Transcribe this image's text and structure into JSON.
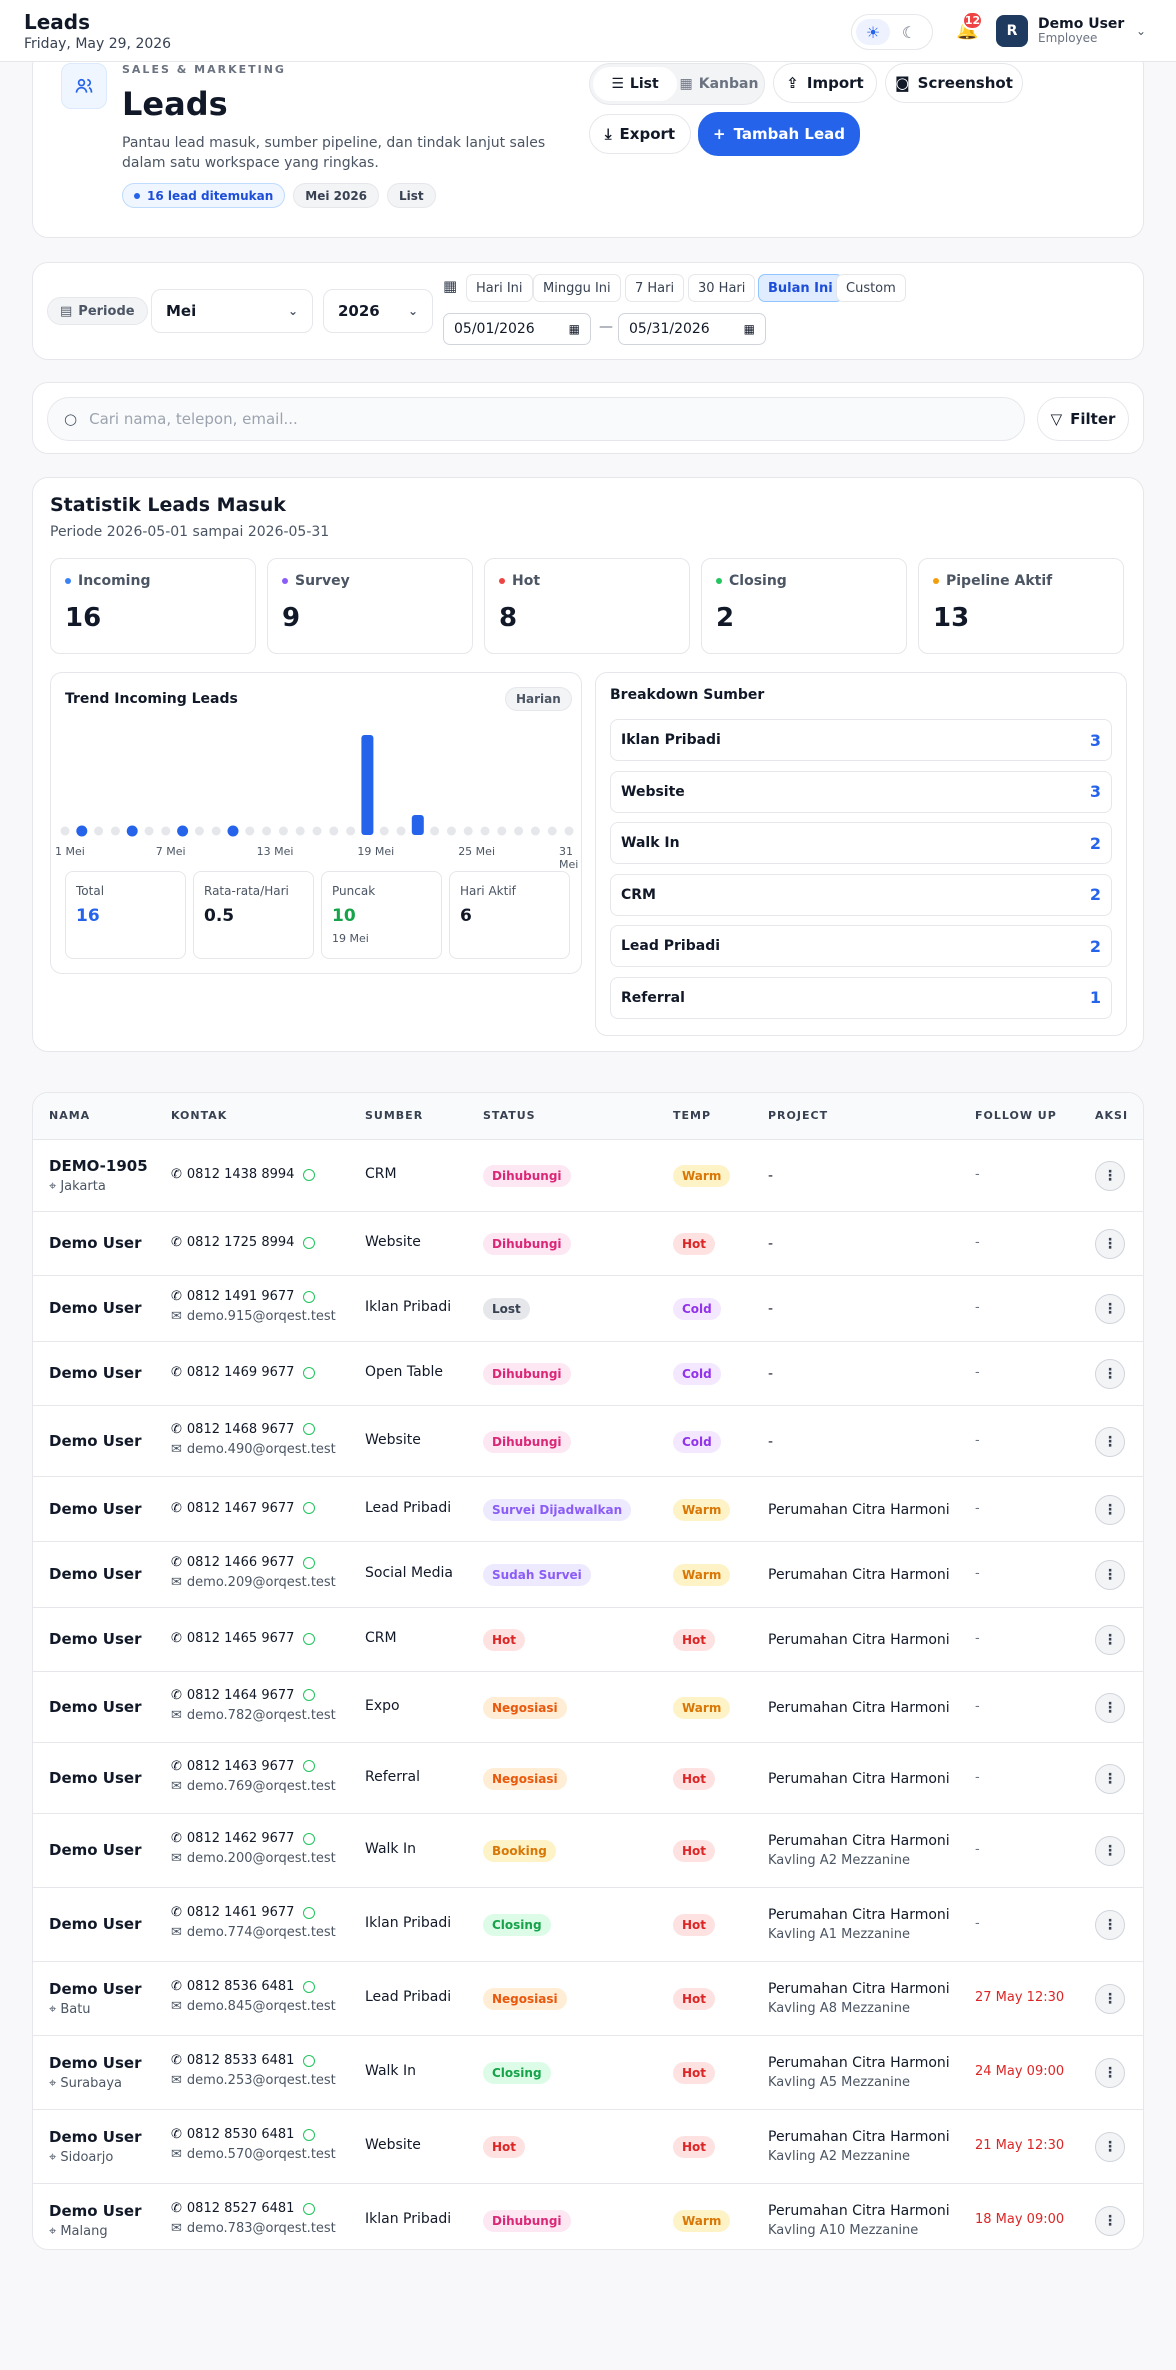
{
  "topbar": {
    "title": "Leads",
    "date": "Friday, May 29, 2026",
    "notif_count": "12",
    "user_initial": "R",
    "user_name": "Demo User",
    "user_role": "Employee"
  },
  "hero": {
    "kicker": "SALES & MARKETING",
    "title": "Leads",
    "desc": "Pantau lead masuk, sumber pipeline, dan tindak lanjut sales dalam satu workspace yang ringkas.",
    "chips": [
      "16 lead ditemukan",
      "Mei 2026",
      "List"
    ],
    "view_list": "List",
    "view_kanban": "Kanban",
    "import": "Import",
    "screenshot": "Screenshot",
    "export": "Export",
    "add": "Tambah Lead"
  },
  "period": {
    "label": "Periode",
    "month": "Mei",
    "year": "2026",
    "quick": [
      "Hari Ini",
      "Minggu Ini",
      "7 Hari",
      "30 Hari",
      "Bulan Ini",
      "Custom"
    ],
    "active_quick": "Bulan Ini",
    "date_from": "05/01/2026",
    "date_to": "05/31/2026",
    "sep": "—"
  },
  "search": {
    "placeholder": "Cari nama, telepon, email...",
    "filter": "Filter"
  },
  "stats": {
    "title": "Statistik Leads Masuk",
    "subtitle": "Periode 2026-05-01 sampai 2026-05-31",
    "cards": [
      {
        "label": "Incoming",
        "value": "16",
        "color": "#3b82f6"
      },
      {
        "label": "Survey",
        "value": "9",
        "color": "#8b5cf6"
      },
      {
        "label": "Hot",
        "value": "8",
        "color": "#ef4444"
      },
      {
        "label": "Closing",
        "value": "2",
        "color": "#22c55e"
      },
      {
        "label": "Pipeline Aktif",
        "value": "13",
        "color": "#f59e0b"
      }
    ],
    "trend_title": "Trend Incoming Leads",
    "trend_mode": "Harian",
    "metrics": [
      {
        "label": "Total",
        "value": "16",
        "color": "#2563eb",
        "sub": ""
      },
      {
        "label": "Rata-rata/Hari",
        "value": "0.5",
        "color": "#111827",
        "sub": ""
      },
      {
        "label": "Puncak",
        "value": "10",
        "color": "#16a34a",
        "sub": "19 Mei"
      },
      {
        "label": "Hari Aktif",
        "value": "6",
        "color": "#111827",
        "sub": ""
      }
    ],
    "breakdown_title": "Breakdown Sumber",
    "breakdown": [
      {
        "label": "Iklan Pribadi",
        "value": "3"
      },
      {
        "label": "Website",
        "value": "3"
      },
      {
        "label": "Walk In",
        "value": "2"
      },
      {
        "label": "CRM",
        "value": "2"
      },
      {
        "label": "Lead Pribadi",
        "value": "2"
      },
      {
        "label": "Referral",
        "value": "1"
      }
    ]
  },
  "chart_data": {
    "type": "bar",
    "title": "Trend Incoming Leads",
    "categories": [
      "1 Mei",
      "2 Mei",
      "3 Mei",
      "4 Mei",
      "5 Mei",
      "6 Mei",
      "7 Mei",
      "8 Mei",
      "9 Mei",
      "10 Mei",
      "11 Mei",
      "12 Mei",
      "13 Mei",
      "14 Mei",
      "15 Mei",
      "16 Mei",
      "17 Mei",
      "18 Mei",
      "19 Mei",
      "20 Mei",
      "21 Mei",
      "22 Mei",
      "23 Mei",
      "24 Mei",
      "25 Mei",
      "26 Mei",
      "27 Mei",
      "28 Mei",
      "29 Mei",
      "30 Mei",
      "31 Mei"
    ],
    "values": [
      0,
      1,
      0,
      0,
      1,
      0,
      0,
      1,
      0,
      0,
      1,
      0,
      0,
      0,
      0,
      0,
      0,
      0,
      10,
      0,
      0,
      2,
      0,
      0,
      0,
      0,
      0,
      0,
      0,
      0,
      0
    ],
    "tick_labels": [
      "1 Mei",
      "7 Mei",
      "13 Mei",
      "19 Mei",
      "25 Mei",
      "31 Mei"
    ],
    "ylim": [
      0,
      10
    ]
  },
  "table": {
    "headers": [
      "NAMA",
      "KONTAK",
      "SUMBER",
      "STATUS",
      "TEMP",
      "PROJECT",
      "FOLLOW UP",
      "AKSI"
    ],
    "rows": [
      {
        "name": "DEMO-1905",
        "city": "Jakarta",
        "phone": "0812 1438 8994",
        "email": "",
        "source": "CRM",
        "status": "Dihubungi",
        "temp": "Warm",
        "project": "-",
        "project_sub": "",
        "followup": "-"
      },
      {
        "name": "Demo User",
        "city": "",
        "phone": "0812 1725 8994",
        "email": "",
        "source": "Website",
        "status": "Dihubungi",
        "temp": "Hot",
        "project": "-",
        "project_sub": "",
        "followup": "-"
      },
      {
        "name": "Demo User",
        "city": "",
        "phone": "0812 1491 9677",
        "email": "demo.915@orqest.test",
        "source": "Iklan Pribadi",
        "status": "Lost",
        "temp": "Cold",
        "project": "-",
        "project_sub": "",
        "followup": "-"
      },
      {
        "name": "Demo User",
        "city": "",
        "phone": "0812 1469 9677",
        "email": "",
        "source": "Open Table",
        "status": "Dihubungi",
        "temp": "Cold",
        "project": "-",
        "project_sub": "",
        "followup": "-"
      },
      {
        "name": "Demo User",
        "city": "",
        "phone": "0812 1468 9677",
        "email": "demo.490@orqest.test",
        "source": "Website",
        "status": "Dihubungi",
        "temp": "Cold",
        "project": "-",
        "project_sub": "",
        "followup": "-"
      },
      {
        "name": "Demo User",
        "city": "",
        "phone": "0812 1467 9677",
        "email": "",
        "source": "Lead Pribadi",
        "status": "Survei Dijadwalkan",
        "temp": "Warm",
        "project": "Perumahan Citra Harmoni",
        "project_sub": "",
        "followup": "-"
      },
      {
        "name": "Demo User",
        "city": "",
        "phone": "0812 1466 9677",
        "email": "demo.209@orqest.test",
        "source": "Social Media",
        "status": "Sudah Survei",
        "temp": "Warm",
        "project": "Perumahan Citra Harmoni",
        "project_sub": "",
        "followup": "-"
      },
      {
        "name": "Demo User",
        "city": "",
        "phone": "0812 1465 9677",
        "email": "",
        "source": "CRM",
        "status": "Hot",
        "temp": "Hot",
        "project": "Perumahan Citra Harmoni",
        "project_sub": "",
        "followup": "-"
      },
      {
        "name": "Demo User",
        "city": "",
        "phone": "0812 1464 9677",
        "email": "demo.782@orqest.test",
        "source": "Expo",
        "status": "Negosiasi",
        "temp": "Warm",
        "project": "Perumahan Citra Harmoni",
        "project_sub": "",
        "followup": "-"
      },
      {
        "name": "Demo User",
        "city": "",
        "phone": "0812 1463 9677",
        "email": "demo.769@orqest.test",
        "source": "Referral",
        "status": "Negosiasi",
        "temp": "Hot",
        "project": "Perumahan Citra Harmoni",
        "project_sub": "",
        "followup": "-"
      },
      {
        "name": "Demo User",
        "city": "",
        "phone": "0812 1462 9677",
        "email": "demo.200@orqest.test",
        "source": "Walk In",
        "status": "Booking",
        "temp": "Hot",
        "project": "Perumahan Citra Harmoni",
        "project_sub": "Kavling A2 Mezzanine",
        "followup": "-"
      },
      {
        "name": "Demo User",
        "city": "",
        "phone": "0812 1461 9677",
        "email": "demo.774@orqest.test",
        "source": "Iklan Pribadi",
        "status": "Closing",
        "temp": "Hot",
        "project": "Perumahan Citra Harmoni",
        "project_sub": "Kavling A1 Mezzanine",
        "followup": "-"
      },
      {
        "name": "Demo User",
        "city": "Batu",
        "phone": "0812 8536 6481",
        "email": "demo.845@orqest.test",
        "source": "Lead Pribadi",
        "status": "Negosiasi",
        "temp": "Hot",
        "project": "Perumahan Citra Harmoni",
        "project_sub": "Kavling A8 Mezzanine",
        "followup": "27 May 12:30"
      },
      {
        "name": "Demo User",
        "city": "Surabaya",
        "phone": "0812 8533 6481",
        "email": "demo.253@orqest.test",
        "source": "Walk In",
        "status": "Closing",
        "temp": "Hot",
        "project": "Perumahan Citra Harmoni",
        "project_sub": "Kavling A5 Mezzanine",
        "followup": "24 May 09:00"
      },
      {
        "name": "Demo User",
        "city": "Sidoarjo",
        "phone": "0812 8530 6481",
        "email": "demo.570@orqest.test",
        "source": "Website",
        "status": "Hot",
        "temp": "Hot",
        "project": "Perumahan Citra Harmoni",
        "project_sub": "Kavling A2 Mezzanine",
        "followup": "21 May 12:30"
      },
      {
        "name": "Demo User",
        "city": "Malang",
        "phone": "0812 8527 6481",
        "email": "demo.783@orqest.test",
        "source": "Iklan Pribadi",
        "status": "Dihubungi",
        "temp": "Warm",
        "project": "Perumahan Citra Harmoni",
        "project_sub": "Kavling A10 Mezzanine",
        "followup": "18 May 09:00"
      }
    ]
  },
  "colors": {
    "accent": "#2563eb",
    "status_dihubungi": "#db2777",
    "status_lost": "#4b5563",
    "status_survei": "#8b5cf6",
    "status_hot": "#dc2626",
    "status_negosiasi": "#ea580c",
    "status_booking": "#d97706",
    "status_closing": "#16a34a",
    "temp_warm": "#d97706",
    "temp_hot": "#dc2626",
    "temp_cold": "#9333ea"
  },
  "icons": {
    "hero": "users-icon",
    "phone": "phone-icon",
    "whatsapp": "whatsapp-icon",
    "email": "mail-icon",
    "location": "pin-icon",
    "kebab": "more-vertical-icon"
  }
}
